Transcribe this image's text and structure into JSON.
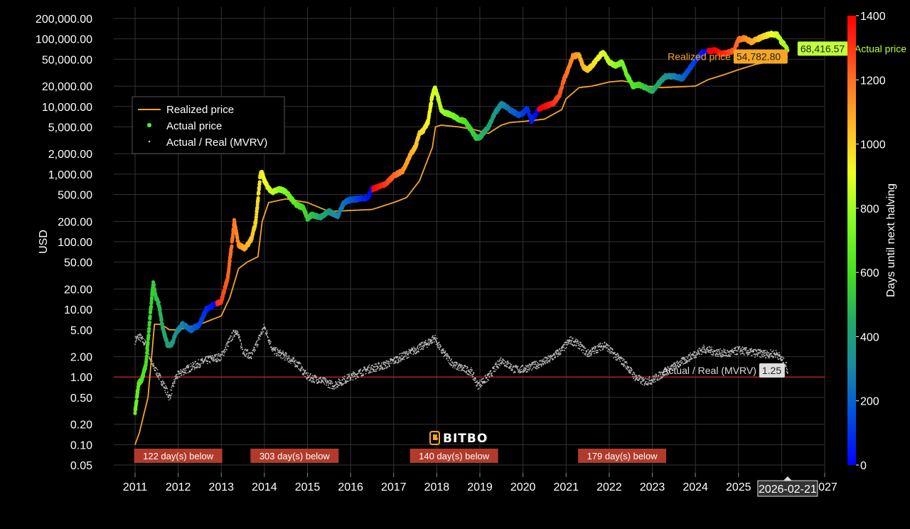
{
  "chart_data": {
    "type": "scatter",
    "y_scale": "log",
    "ylabel": "USD",
    "ylim": [
      0.05,
      200000
    ],
    "y_ticks": [
      "200,000.00",
      "100,000.00",
      "50,000.00",
      "20,000.00",
      "10,000.00",
      "5,000.00",
      "2,000.00",
      "1,000.00",
      "500.00",
      "200.00",
      "100.00",
      "50.00",
      "20.00",
      "10.00",
      "5.00",
      "2.00",
      "1.00",
      "0.50",
      "0.20",
      "0.10",
      "0.05"
    ],
    "y_tick_values": [
      200000,
      100000,
      50000,
      20000,
      10000,
      5000,
      2000,
      1000,
      500,
      200,
      100,
      50,
      20,
      10,
      5,
      2,
      1,
      0.5,
      0.2,
      0.1,
      0.05
    ],
    "xlim": [
      2010.5,
      2027
    ],
    "x_ticks": [
      "2011",
      "2012",
      "2013",
      "2014",
      "2015",
      "2016",
      "2017",
      "2018",
      "2019",
      "2020",
      "2021",
      "2022",
      "2023",
      "2024",
      "2025",
      "2027"
    ],
    "x_tick_values": [
      2011,
      2012,
      2013,
      2014,
      2015,
      2016,
      2017,
      2018,
      2019,
      2020,
      2021,
      2022,
      2023,
      2024,
      2025,
      2027
    ],
    "grid": true,
    "legend_position": "top-left",
    "legend": [
      "Realized price",
      "Actual price",
      "Actual / Real (MVRV)"
    ],
    "colorbar": {
      "label": "Days until next halving",
      "ticks": [
        1400,
        1200,
        1000,
        800,
        600,
        400,
        200,
        0
      ],
      "range": [
        0,
        1400
      ]
    },
    "series": [
      {
        "name": "Actual price",
        "x": [
          2011.0,
          2011.08,
          2011.15,
          2011.25,
          2011.35,
          2011.42,
          2011.48,
          2011.55,
          2011.65,
          2011.75,
          2011.85,
          2011.95,
          2012.1,
          2012.3,
          2012.5,
          2012.65,
          2012.85,
          2013.0,
          2013.15,
          2013.25,
          2013.3,
          2013.4,
          2013.55,
          2013.7,
          2013.8,
          2013.9,
          2013.93,
          2014.0,
          2014.1,
          2014.2,
          2014.35,
          2014.5,
          2014.6,
          2014.75,
          2014.9,
          2015.0,
          2015.1,
          2015.3,
          2015.5,
          2015.7,
          2015.85,
          2016.0,
          2016.2,
          2016.4,
          2016.5,
          2016.6,
          2016.8,
          2017.0,
          2017.2,
          2017.4,
          2017.5,
          2017.6,
          2017.7,
          2017.8,
          2017.9,
          2017.96,
          2018.05,
          2018.1,
          2018.2,
          2018.35,
          2018.5,
          2018.65,
          2018.8,
          2018.9,
          2019.0,
          2019.2,
          2019.35,
          2019.5,
          2019.6,
          2019.75,
          2019.9,
          2020.0,
          2020.1,
          2020.2,
          2020.35,
          2020.5,
          2020.7,
          2020.85,
          2020.95,
          2021.05,
          2021.15,
          2021.3,
          2021.4,
          2021.5,
          2021.6,
          2021.7,
          2021.8,
          2021.87,
          2022.0,
          2022.15,
          2022.3,
          2022.4,
          2022.55,
          2022.7,
          2022.85,
          2023.0,
          2023.15,
          2023.3,
          2023.5,
          2023.7,
          2023.85,
          2024.0,
          2024.15,
          2024.3,
          2024.45,
          2024.6,
          2024.75,
          2024.9,
          2025.0,
          2025.15,
          2025.3,
          2025.45,
          2025.6,
          2025.75,
          2025.9,
          2026.0,
          2026.1,
          2026.14
        ],
        "y": [
          0.3,
          0.8,
          0.9,
          1.5,
          8,
          25,
          15,
          12,
          5,
          3,
          3,
          4.5,
          6,
          5,
          6,
          10,
          12,
          13,
          30,
          100,
          200,
          90,
          80,
          110,
          200,
          900,
          1100,
          800,
          600,
          550,
          600,
          550,
          450,
          350,
          320,
          220,
          250,
          230,
          280,
          240,
          380,
          420,
          430,
          450,
          600,
          630,
          700,
          950,
          1100,
          2000,
          2500,
          4000,
          4500,
          6000,
          15000,
          19000,
          12000,
          9000,
          8000,
          7500,
          6500,
          6000,
          4500,
          3500,
          3500,
          5000,
          8000,
          11000,
          10000,
          8500,
          7500,
          8000,
          9500,
          6000,
          9000,
          10000,
          11000,
          15000,
          25000,
          35000,
          55000,
          58000,
          38000,
          35000,
          40000,
          48000,
          58000,
          62000,
          45000,
          40000,
          45000,
          30000,
          20000,
          21000,
          19000,
          17000,
          22000,
          28000,
          28000,
          26000,
          35000,
          48000,
          62000,
          66000,
          68000,
          60000,
          62000,
          68000,
          98000,
          102000,
          90000,
          100000,
          110000,
          118000,
          115000,
          90000,
          78000,
          68416.57
        ],
        "color_var": "days_until_next_halving"
      },
      {
        "name": "Realized price",
        "x": [
          2011.0,
          2011.1,
          2011.3,
          2011.45,
          2011.6,
          2011.8,
          2012.0,
          2012.5,
          2013.0,
          2013.2,
          2013.4,
          2013.6,
          2013.85,
          2013.95,
          2014.1,
          2014.5,
          2015.0,
          2015.5,
          2016.0,
          2016.5,
          2017.0,
          2017.3,
          2017.6,
          2017.9,
          2017.97,
          2018.1,
          2018.5,
          2018.9,
          2019.2,
          2019.5,
          2019.7,
          2020.0,
          2020.5,
          2020.9,
          2021.0,
          2021.3,
          2021.6,
          2022.0,
          2022.3,
          2022.6,
          2022.9,
          2023.2,
          2023.6,
          2024.0,
          2024.3,
          2024.7,
          2025.0,
          2025.4,
          2025.8,
          2026.0,
          2026.14
        ],
        "y": [
          0.1,
          0.15,
          0.5,
          6,
          6,
          5,
          5,
          6,
          8,
          15,
          40,
          50,
          60,
          200,
          380,
          430,
          380,
          280,
          290,
          300,
          380,
          450,
          800,
          2500,
          5000,
          5300,
          5000,
          4500,
          4000,
          5300,
          5800,
          6000,
          6500,
          9000,
          13000,
          19000,
          20000,
          23000,
          24000,
          22000,
          20000,
          19000,
          19500,
          20000,
          25000,
          30000,
          35000,
          42000,
          47000,
          52000,
          54782.8
        ]
      },
      {
        "name": "Actual / Real (MVRV)",
        "x": [
          2011.0,
          2011.1,
          2011.25,
          2011.4,
          2011.5,
          2011.65,
          2011.8,
          2011.95,
          2012.1,
          2012.4,
          2012.7,
          2013.0,
          2013.2,
          2013.35,
          2013.5,
          2013.7,
          2013.9,
          2014.0,
          2014.2,
          2014.5,
          2014.8,
          2015.0,
          2015.3,
          2015.6,
          2016.0,
          2016.4,
          2016.8,
          2017.2,
          2017.5,
          2017.8,
          2017.95,
          2018.1,
          2018.4,
          2018.8,
          2018.95,
          2019.2,
          2019.5,
          2019.8,
          2020.0,
          2020.3,
          2020.6,
          2020.9,
          2021.1,
          2021.3,
          2021.5,
          2021.8,
          2021.9,
          2022.1,
          2022.4,
          2022.6,
          2022.8,
          2023.0,
          2024.0,
          2024.2,
          2024.5,
          2024.8,
          2025.0,
          2025.3,
          2025.6,
          2025.9,
          2026.1,
          2026.14
        ],
        "y": [
          3.5,
          4,
          3,
          1.5,
          1.2,
          0.8,
          0.5,
          1,
          1.2,
          1.5,
          1.8,
          2,
          3.5,
          5,
          2.5,
          2,
          4,
          5.5,
          2.5,
          2,
          1.5,
          1,
          0.9,
          0.75,
          1,
          1.3,
          1.5,
          2,
          2.5,
          3.2,
          3.8,
          2.5,
          1.5,
          1.2,
          0.75,
          1,
          1.8,
          1.3,
          1.3,
          1.5,
          1.8,
          2.5,
          3.5,
          3,
          2.2,
          2.8,
          3,
          2.2,
          1.5,
          1,
          0.85,
          0.9,
          2.2,
          2.6,
          2.3,
          2.2,
          2.5,
          2.3,
          2.2,
          2.2,
          1.5,
          1.25
        ]
      }
    ],
    "reference_line": {
      "y": 1.0,
      "color": "#cc2222"
    },
    "annotations": {
      "below_periods": [
        "122 day(s) below",
        "303 day(s) below",
        "140 day(s) below",
        "179 day(s) below"
      ],
      "below_period_x": [
        2012.0,
        2014.7,
        2018.4,
        2022.3
      ],
      "last_actual_price": "68,416.57",
      "last_realized_price": "54,782.80",
      "last_mvrv": "1.25",
      "last_date": "2026-02-21",
      "last_x": 2026.14,
      "label_actual_price": "Actual price",
      "label_realized_price": "Realized price",
      "label_mvrv": "Actual / Real (MVRV)"
    },
    "watermark": "BITBO"
  },
  "colors": {
    "realized": "#f5a623",
    "actual_legend": "#44ff22",
    "mvrv": "#bbbbbb",
    "below_tag": "#b23a2a",
    "actual_tag": "#bfff3a",
    "realized_tag": "#f5a623",
    "mvrv_tag": "#dddddd",
    "grid": "#333333"
  }
}
